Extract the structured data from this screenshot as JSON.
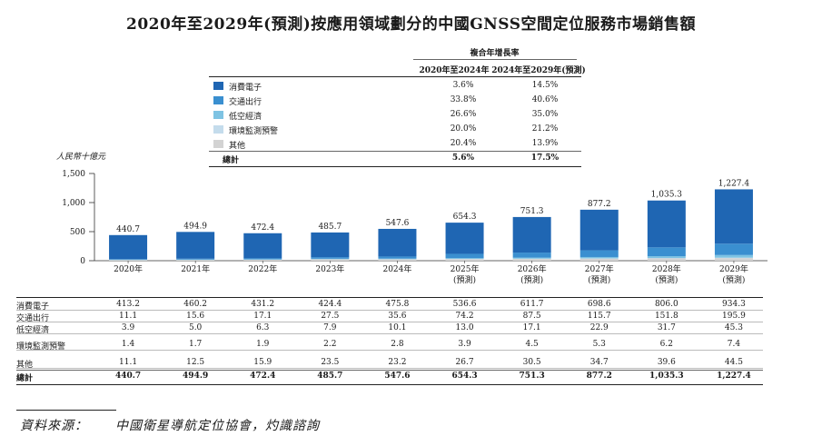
{
  "title": "2020年至2029年(預測)按應用領域劃分的中國GNSS空間定位服務市場銷售額",
  "cagr_header": {
    "title": "複合年增長率",
    "col1": "2020年至2024年",
    "col2": "2024年至2029年(預測)"
  },
  "legend": [
    {
      "label": "消費電子",
      "color": "#1f66b3",
      "cagr1": "3.6%",
      "cagr2": "14.5%"
    },
    {
      "label": "交通出行",
      "color": "#3a8fd0",
      "cagr1": "33.8%",
      "cagr2": "40.6%"
    },
    {
      "label": "低空經濟",
      "color": "#7ec3e3",
      "cagr1": "26.6%",
      "cagr2": "35.0%"
    },
    {
      "label": "環境監測預警",
      "color": "#c4dcec",
      "cagr1": "20.0%",
      "cagr2": "21.2%"
    },
    {
      "label": "其他",
      "color": "#d3d3d3",
      "cagr1": "20.4%",
      "cagr2": "13.9%"
    }
  ],
  "legend_total": {
    "label": "總計",
    "cagr1": "5.6%",
    "cagr2": "17.5%"
  },
  "unit_label": "人民幣十億元",
  "chart_data": {
    "type": "bar",
    "stacked": true,
    "categories": [
      "2020年",
      "2021年",
      "2022年",
      "2023年",
      "2024年",
      "2025年\n(預測)",
      "2026年\n(預測)",
      "2027年\n(預測)",
      "2028年\n(預測)",
      "2029年\n(預測)"
    ],
    "category_years": [
      "2020年",
      "2021年",
      "2022年",
      "2023年",
      "2024年",
      "2025年",
      "2026年",
      "2027年",
      "2028年",
      "2029年"
    ],
    "category_notes": [
      "",
      "",
      "",
      "",
      "",
      "(預測)",
      "(預測)",
      "(預測)",
      "(預測)",
      "(預測)"
    ],
    "series": [
      {
        "name": "消費電子",
        "color": "#1f66b3",
        "values": [
          413.2,
          460.2,
          431.2,
          424.4,
          475.8,
          536.6,
          611.7,
          698.6,
          806.0,
          934.3
        ],
        "display": [
          "413.2",
          "460.2",
          "431.2",
          "424.4",
          "475.8",
          "536.6",
          "611.7",
          "698.6",
          "806.0",
          "934.3"
        ]
      },
      {
        "name": "交通出行",
        "color": "#3a8fd0",
        "values": [
          11.1,
          15.6,
          17.1,
          27.5,
          35.6,
          74.2,
          87.5,
          115.7,
          151.8,
          195.9
        ],
        "display": [
          "11.1",
          "15.6",
          "17.1",
          "27.5",
          "35.6",
          "74.2",
          "87.5",
          "115.7",
          "151.8",
          "195.9"
        ]
      },
      {
        "name": "低空經濟",
        "color": "#7ec3e3",
        "values": [
          3.9,
          5.0,
          6.3,
          7.9,
          10.1,
          13.0,
          17.1,
          22.9,
          31.7,
          45.3
        ],
        "display": [
          "3.9",
          "5.0",
          "6.3",
          "7.9",
          "10.1",
          "13.0",
          "17.1",
          "22.9",
          "31.7",
          "45.3"
        ]
      },
      {
        "name": "環境監測預警",
        "color": "#c4dcec",
        "values": [
          1.4,
          1.7,
          1.9,
          2.2,
          2.8,
          3.9,
          4.5,
          5.3,
          6.2,
          7.4
        ],
        "display": [
          "1.4",
          "1.7",
          "1.9",
          "2.2",
          "2.8",
          "3.9",
          "4.5",
          "5.3",
          "6.2",
          "7.4"
        ]
      },
      {
        "name": "其他",
        "color": "#d3d3d3",
        "values": [
          11.1,
          12.5,
          15.9,
          23.5,
          23.2,
          26.7,
          30.5,
          34.7,
          39.6,
          44.5
        ],
        "display": [
          "11.1",
          "12.5",
          "15.9",
          "23.5",
          "23.2",
          "26.7",
          "30.5",
          "34.7",
          "39.6",
          "44.5"
        ]
      }
    ],
    "totals": [
      440.7,
      494.9,
      472.4,
      485.7,
      547.6,
      654.3,
      751.3,
      877.2,
      1035.3,
      1227.4
    ],
    "total_labels": [
      "440.7",
      "494.9",
      "472.4",
      "485.7",
      "547.6",
      "654.3",
      "751.3",
      "877.2",
      "1,035.3",
      "1,227.4"
    ],
    "total_name": "總計",
    "ylim": [
      0,
      1500
    ],
    "yticks": [
      0,
      500,
      1000,
      1500
    ],
    "ytick_labels": [
      "0",
      "500",
      "1,000",
      "1,500"
    ],
    "ylabel": "人民幣十億元"
  },
  "source": {
    "label": "資料來源：",
    "text": "中國衛星導航定位協會，灼識諮詢"
  }
}
